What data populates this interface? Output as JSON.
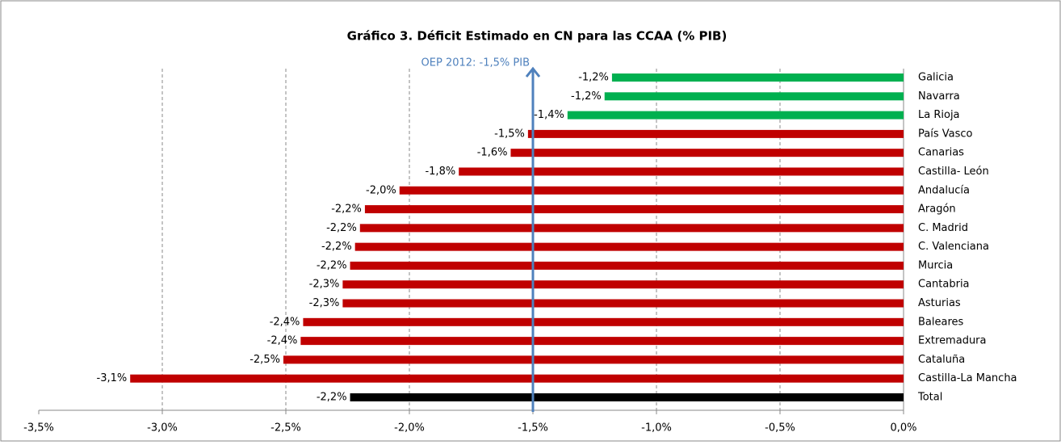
{
  "chart_data": {
    "type": "bar",
    "orientation": "horizontal",
    "title": "Gráfico 3. Déficit Estimado en CN para las CCAA (% PIB)",
    "categories": [
      "Galicia",
      "Navarra",
      "La Rioja",
      "País Vasco",
      "Canarias",
      "Castilla- León",
      "Andalucía",
      "Aragón",
      "C. Madrid",
      "C. Valenciana",
      "Murcia",
      "Cantabria",
      "Asturias",
      "Baleares",
      "Extremadura",
      "Cataluña",
      "Castilla-La Mancha",
      "Total"
    ],
    "values": [
      -1.18,
      -1.21,
      -1.36,
      -1.52,
      -1.59,
      -1.8,
      -2.04,
      -2.18,
      -2.2,
      -2.22,
      -2.24,
      -2.27,
      -2.27,
      -2.43,
      -2.44,
      -2.51,
      -3.13,
      -2.24
    ],
    "value_labels": [
      "-1,2%",
      "-1,2%",
      "-1,4%",
      "-1,5%",
      "-1,6%",
      "-1,8%",
      "-2,0%",
      "-2,2%",
      "-2,2%",
      "-2,2%",
      "-2,2%",
      "-2,3%",
      "-2,3%",
      "-2,4%",
      "-2,4%",
      "-2,5%",
      "-3,1%",
      "-2,2%"
    ],
    "colors": [
      "#00b050",
      "#00b050",
      "#00b050",
      "#c00000",
      "#c00000",
      "#c00000",
      "#c00000",
      "#c00000",
      "#c00000",
      "#c00000",
      "#c00000",
      "#c00000",
      "#c00000",
      "#c00000",
      "#c00000",
      "#c00000",
      "#c00000",
      "#000000"
    ],
    "xlim": [
      -3.5,
      0
    ],
    "xticks": [
      {
        "value": -3.5,
        "label": "-3,5%"
      },
      {
        "value": -3.0,
        "label": "-3,0%"
      },
      {
        "value": -2.5,
        "label": "-2,5%"
      },
      {
        "value": -2.0,
        "label": "-2,0%"
      },
      {
        "value": -1.5,
        "label": "-1,5%"
      },
      {
        "value": -1.0,
        "label": "-1,0%"
      },
      {
        "value": -0.5,
        "label": "-0,5%"
      },
      {
        "value": 0,
        "label": "0,0%"
      }
    ],
    "grid": true,
    "annotation": {
      "text": "OEP 2012: -1,5% PIB",
      "value": -1.5,
      "color": "#4f81bd"
    }
  }
}
